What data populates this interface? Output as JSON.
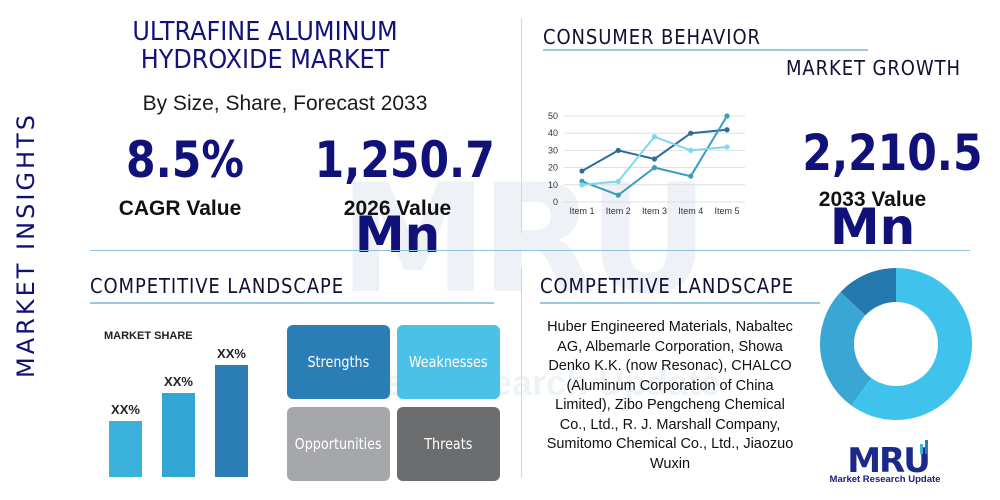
{
  "side_label": "MARKET INSIGHTS",
  "watermark": {
    "mark": "MRU",
    "sub": "Market Research Update"
  },
  "header": {
    "title": "ULTRAFINE ALUMINUM HYDROXIDE MARKET",
    "subtitle": "By Size, Share, Forecast 2033"
  },
  "metrics": {
    "cagr": {
      "value": "8.5%",
      "label": "CAGR Value"
    },
    "value_2026": {
      "value": "1,250.7",
      "label": "2026 Value",
      "unit": "Mn"
    },
    "value_2033": {
      "value": "2,210.5",
      "label": "2033 Value",
      "unit": "Mn"
    }
  },
  "sections": {
    "consumer_behavior": "CONSUMER BEHAVIOR",
    "market_growth": "MARKET GROWTH",
    "competitive_landscape_left": "COMPETITIVE LANDSCAPE",
    "competitive_landscape_right": "COMPETITIVE LANDSCAPE"
  },
  "swot": {
    "strengths": "Strengths",
    "weaknesses": "Weaknesses",
    "opportunities": "Opportunities",
    "threats": "Threats"
  },
  "companies": "Huber Engineered Materials, Nabaltec AG, Albemarle Corporation, Showa Denko K.K. (now Resonac), CHALCO (Aluminum Corporation of China Limited), Zibo Pengcheng Chemical Co., Ltd., R. J. Marshall Company, Sumitomo Chemical Co., Ltd., Jiaozuo Wuxin",
  "logo": {
    "mark": "MRU",
    "text": "Market Research Update"
  },
  "chart_data": [
    {
      "type": "line",
      "categories": [
        "Item 1",
        "Item 2",
        "Item 3",
        "Item 4",
        "Item 5"
      ],
      "yticks": [
        0,
        10,
        20,
        30,
        40,
        50
      ],
      "ylim": [
        0,
        50
      ],
      "grid": true,
      "series": [
        {
          "values": [
            18,
            30,
            25,
            40,
            42
          ],
          "color": "#2a6d9b"
        },
        {
          "values": [
            12,
            4,
            20,
            15,
            50
          ],
          "color": "#3a9cc0"
        },
        {
          "values": [
            10,
            12,
            38,
            30,
            32
          ],
          "color": "#7fd8e8"
        }
      ]
    },
    {
      "type": "bar",
      "title": "MARKET SHARE",
      "categories": [
        "",
        "",
        ""
      ],
      "value_labels": [
        "XX%",
        "XX%",
        "XX%"
      ],
      "values": [
        1,
        1.5,
        2
      ],
      "colors": [
        "#3ab2dc",
        "#32a6d5",
        "#2b7db5"
      ]
    },
    {
      "type": "pie",
      "donut": true,
      "values": [
        60,
        27,
        13
      ],
      "colors": [
        "#3fc3ec",
        "#3aa6d4",
        "#2478ad"
      ]
    }
  ]
}
